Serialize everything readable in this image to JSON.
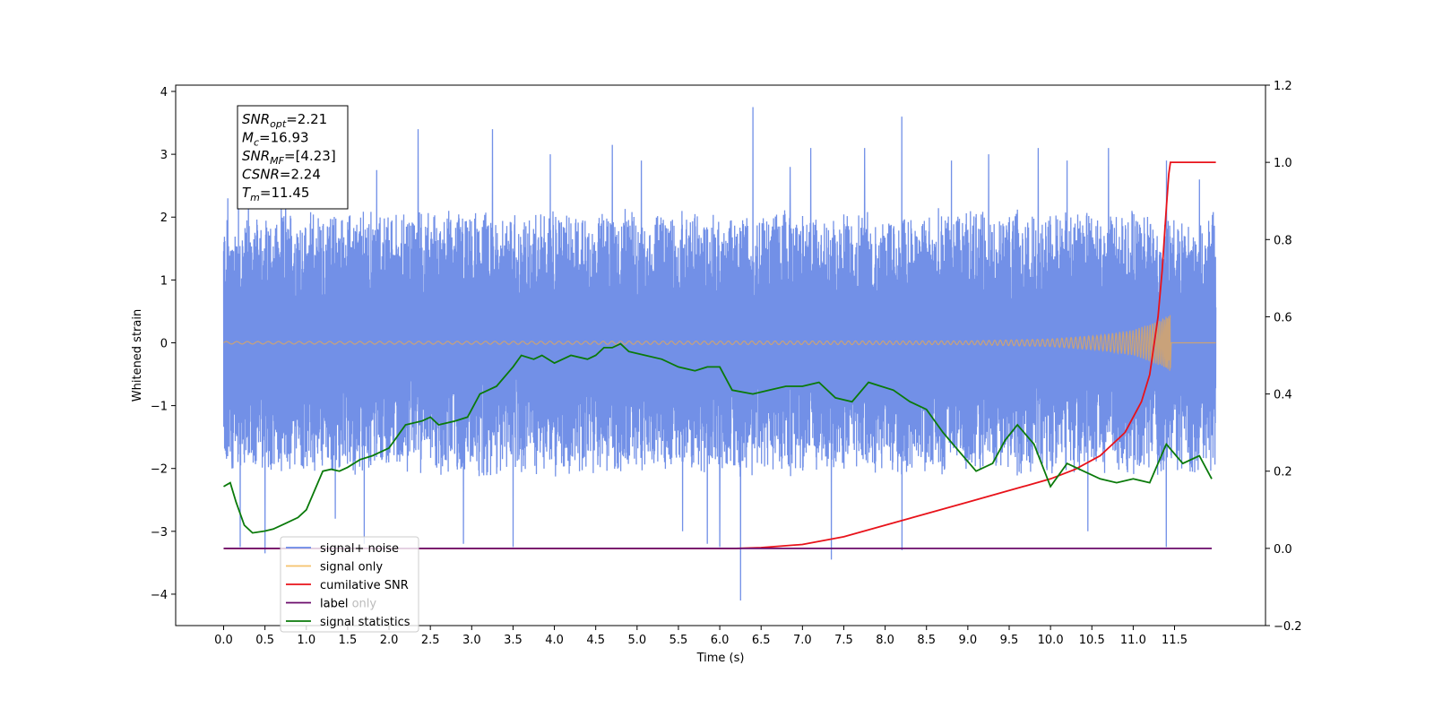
{
  "chart_data": {
    "type": "line",
    "xlabel": "Time (s)",
    "ylabel": "Whitened strain",
    "xlim": [
      -0.58,
      12.6
    ],
    "ylim": [
      -4.5,
      4.1
    ],
    "y2lim": [
      -0.2,
      1.2
    ],
    "x_ticks": [
      "0.0",
      "0.5",
      "1.0",
      "1.5",
      "2.0",
      "2.5",
      "3.0",
      "3.5",
      "4.0",
      "4.5",
      "5.0",
      "5.5",
      "6.0",
      "6.5",
      "7.0",
      "7.5",
      "8.0",
      "8.5",
      "9.0",
      "9.5",
      "10.0",
      "10.5",
      "11.0",
      "11.5"
    ],
    "y_ticks": [
      "−4",
      "−3",
      "−2",
      "−1",
      "0",
      "1",
      "2",
      "3",
      "4"
    ],
    "y2_ticks": [
      "−0.2",
      "0.0",
      "0.2",
      "0.4",
      "0.6",
      "0.8",
      "1.0",
      "1.2"
    ],
    "legend_placement": "lower-left",
    "annotation": {
      "lines": [
        {
          "sym": "SNR",
          "sub": "opt",
          "val": "=2.21"
        },
        {
          "sym": "M",
          "sub": "c",
          "val": "=16.93"
        },
        {
          "sym": "SNR",
          "sub": "MF",
          "val": "=[4.23]"
        },
        {
          "sym": "CSNR",
          "sub": "",
          "val": "=2.24"
        },
        {
          "sym": "T",
          "sub": "m",
          "val": "=11.45"
        }
      ]
    },
    "series": [
      {
        "name": "signal+ noise",
        "color": "#6a8ae6",
        "axis": "left",
        "style": "noise",
        "x_range": [
          0.0,
          12.0
        ],
        "band": [
          -2.0,
          2.0
        ],
        "peaks": [
          {
            "x": 0.05,
            "y": 2.3
          },
          {
            "x": 0.1,
            "y": -2.0
          },
          {
            "x": 0.18,
            "y": 2.5
          },
          {
            "x": 0.2,
            "y": -3.25
          },
          {
            "x": 0.3,
            "y": 2.5
          },
          {
            "x": 0.5,
            "y": -3.35
          },
          {
            "x": 0.75,
            "y": 2.5
          },
          {
            "x": 1.35,
            "y": -2.8
          },
          {
            "x": 1.7,
            "y": -3.2
          },
          {
            "x": 1.85,
            "y": 2.75
          },
          {
            "x": 2.35,
            "y": 3.4
          },
          {
            "x": 2.9,
            "y": -3.2
          },
          {
            "x": 3.25,
            "y": 3.4
          },
          {
            "x": 3.5,
            "y": -3.25
          },
          {
            "x": 3.95,
            "y": 3.0
          },
          {
            "x": 4.7,
            "y": 3.15
          },
          {
            "x": 5.05,
            "y": 2.9
          },
          {
            "x": 5.55,
            "y": -3.0
          },
          {
            "x": 5.85,
            "y": -3.2
          },
          {
            "x": 6.0,
            "y": -3.25
          },
          {
            "x": 6.25,
            "y": -4.1
          },
          {
            "x": 6.4,
            "y": 3.75
          },
          {
            "x": 6.85,
            "y": 2.8
          },
          {
            "x": 7.1,
            "y": 3.1
          },
          {
            "x": 7.35,
            "y": -3.45
          },
          {
            "x": 7.75,
            "y": 3.1
          },
          {
            "x": 8.2,
            "y": 3.6
          },
          {
            "x": 8.2,
            "y": -3.3
          },
          {
            "x": 8.8,
            "y": 2.9
          },
          {
            "x": 9.25,
            "y": 3.0
          },
          {
            "x": 9.85,
            "y": 3.1
          },
          {
            "x": 10.2,
            "y": 2.9
          },
          {
            "x": 10.45,
            "y": -3.0
          },
          {
            "x": 10.7,
            "y": 3.1
          },
          {
            "x": 11.4,
            "y": -3.25
          },
          {
            "x": 11.4,
            "y": 2.9
          },
          {
            "x": 11.8,
            "y": 2.6
          }
        ]
      },
      {
        "name": "signal only",
        "color": "#f5b042",
        "axis": "left",
        "style": "chirp",
        "x_range": [
          0.0,
          12.0
        ],
        "merge_time": 11.45,
        "envelope": [
          [
            0.0,
            0.02
          ],
          [
            9.0,
            0.03
          ],
          [
            10.0,
            0.06
          ],
          [
            10.6,
            0.12
          ],
          [
            11.0,
            0.2
          ],
          [
            11.3,
            0.35
          ],
          [
            11.45,
            0.45
          ]
        ]
      },
      {
        "name": "cumilative SNR",
        "color": "#e8121a",
        "axis": "right",
        "x": [
          0.0,
          6.2,
          6.5,
          7.0,
          7.5,
          8.0,
          8.5,
          9.0,
          9.5,
          10.0,
          10.3,
          10.6,
          10.9,
          11.1,
          11.2,
          11.3,
          11.35,
          11.4,
          11.43,
          11.45,
          12.0
        ],
        "y": [
          0.0,
          0.0,
          0.002,
          0.01,
          0.03,
          0.06,
          0.09,
          0.12,
          0.15,
          0.18,
          0.205,
          0.24,
          0.3,
          0.38,
          0.45,
          0.6,
          0.72,
          0.88,
          0.97,
          1.0,
          1.0
        ]
      },
      {
        "name": "label",
        "color": "#6a0a6a",
        "axis": "right",
        "x": [
          0.0,
          11.95
        ],
        "y": [
          0.0,
          0.0
        ]
      },
      {
        "name": "label only",
        "color": "#cccccc",
        "axis": "left",
        "hidden": true,
        "x": [],
        "y": []
      },
      {
        "name": "signal statistics",
        "color": "#0a7a0a",
        "axis": "right",
        "x": [
          0.0,
          0.08,
          0.15,
          0.25,
          0.35,
          0.5,
          0.6,
          0.75,
          0.9,
          1.0,
          1.2,
          1.3,
          1.4,
          1.5,
          1.65,
          1.8,
          2.0,
          2.2,
          2.4,
          2.5,
          2.6,
          2.8,
          2.95,
          3.1,
          3.3,
          3.5,
          3.6,
          3.75,
          3.85,
          4.0,
          4.2,
          4.4,
          4.5,
          4.6,
          4.7,
          4.8,
          4.9,
          5.1,
          5.3,
          5.5,
          5.7,
          5.85,
          6.0,
          6.15,
          6.4,
          6.6,
          6.8,
          7.0,
          7.2,
          7.4,
          7.6,
          7.8,
          7.95,
          8.1,
          8.3,
          8.5,
          8.7,
          8.9,
          9.1,
          9.3,
          9.45,
          9.6,
          9.8,
          10.0,
          10.2,
          10.4,
          10.6,
          10.8,
          11.0,
          11.2,
          11.4,
          11.6,
          11.8,
          11.95
        ],
        "y": [
          0.16,
          0.17,
          0.12,
          0.06,
          0.04,
          0.045,
          0.05,
          0.065,
          0.08,
          0.1,
          0.2,
          0.205,
          0.2,
          0.21,
          0.23,
          0.24,
          0.26,
          0.32,
          0.33,
          0.34,
          0.32,
          0.33,
          0.34,
          0.4,
          0.42,
          0.47,
          0.5,
          0.49,
          0.5,
          0.48,
          0.5,
          0.49,
          0.5,
          0.52,
          0.52,
          0.53,
          0.51,
          0.5,
          0.49,
          0.47,
          0.46,
          0.47,
          0.47,
          0.41,
          0.4,
          0.41,
          0.42,
          0.42,
          0.43,
          0.39,
          0.38,
          0.43,
          0.42,
          0.41,
          0.38,
          0.36,
          0.3,
          0.25,
          0.2,
          0.22,
          0.28,
          0.32,
          0.27,
          0.16,
          0.22,
          0.2,
          0.18,
          0.17,
          0.18,
          0.17,
          0.27,
          0.22,
          0.24,
          0.18
        ]
      }
    ]
  }
}
